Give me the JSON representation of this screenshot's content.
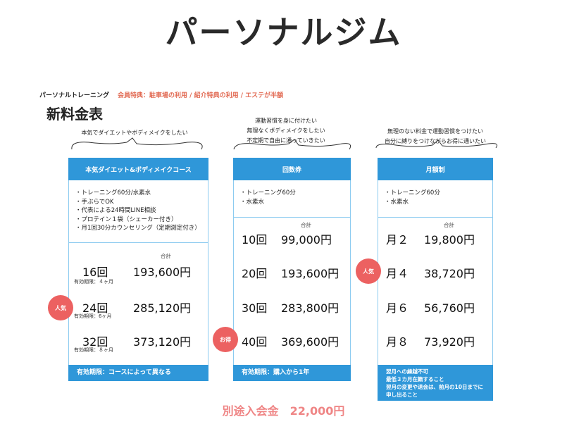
{
  "title": "パーソナルジム",
  "subheader": {
    "label": "パーソナルトレーニング",
    "perks": "会員特典：駐車場の利用 / 紹介特典の利用 / エステが半額"
  },
  "price_heading": "新料金表",
  "cards": [
    {
      "bubble_lines": [
        "本気でダイエットやボディメイクをしたい"
      ],
      "header": "本気ダイエット&ボディメイクコース",
      "features": [
        "・トレーニング60分/水素水",
        "・手ぶらでOK",
        "・代表による24時間LINE相談",
        "・プロテイン１袋（シェーカー付き）",
        "・月1回30分カウンセリング（定期測定付き）"
      ],
      "total_label": "合計",
      "rows": [
        {
          "count": "16回",
          "price": "193,600円",
          "validity": "有効期限：４ヶ月"
        },
        {
          "count": "24回",
          "price": "285,120円",
          "validity": "有効期限：6ヶ月"
        },
        {
          "count": "32回",
          "price": "373,120円",
          "validity": "有効期限：８ヶ月"
        }
      ],
      "footer_lines": [
        "有効期限：コースによって異なる"
      ]
    },
    {
      "bubble_lines": [
        "運動習慣を身に付けたい",
        "無理なくボディメイクをしたい",
        "不定期で自由に通っていきたい"
      ],
      "header": "回数券",
      "features": [
        "・トレーニング60分",
        "・水素水"
      ],
      "total_label": "合計",
      "rows": [
        {
          "count": "10回",
          "price": "99,000円"
        },
        {
          "count": "20回",
          "price": "193,600円"
        },
        {
          "count": "30回",
          "price": "283,800円"
        },
        {
          "count": "40回",
          "price": "369,600円"
        }
      ],
      "footer_lines": [
        "有効期限：購入から1年"
      ]
    },
    {
      "bubble_lines": [
        "無理のない料金で運動習慣をつけたい",
        "自分に縛りをつけながらお得に通いたい"
      ],
      "header": "月額制",
      "features": [
        "・トレーニング60分",
        "・水素水"
      ],
      "total_label": "合計",
      "rows": [
        {
          "count": "月２",
          "price": "19,800円"
        },
        {
          "count": "月４",
          "price": "38,720円"
        },
        {
          "count": "月６",
          "price": "56,760円"
        },
        {
          "count": "月８",
          "price": "73,920円"
        }
      ],
      "footer_lines": [
        "翌月への繰越不可",
        "最低３カ月在籍すること",
        "翌月の変更や退会は、前月の10日までに",
        "申し出ること"
      ]
    }
  ],
  "badges": {
    "popular": "人気",
    "deal": "お得"
  },
  "entry_fee": "別途入会金　22,000円",
  "colors": {
    "accent_blue": "#2f97d9",
    "badge_red": "#ec6161",
    "fee_pink": "#ef8585",
    "perks_red": "#e26c55"
  }
}
